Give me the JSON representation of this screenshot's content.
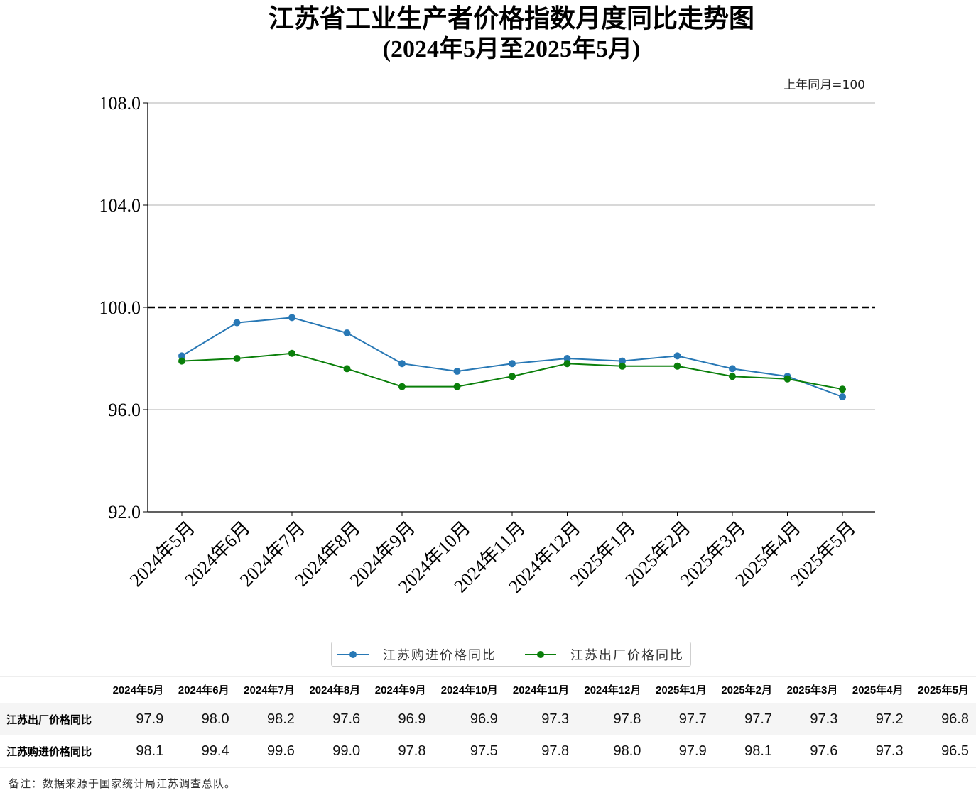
{
  "chart_data": {
    "type": "line",
    "title": "江苏省工业生产者价格指数月度同比走势图",
    "subtitle": "(2024年5月至2025年5月)",
    "note": "上年同月=100",
    "xlabel": "",
    "ylabel": "",
    "ylim": [
      92.0,
      108.0
    ],
    "yticks": [
      "92.0",
      "96.0",
      "100.0",
      "104.0",
      "108.0"
    ],
    "ytick_values": [
      92,
      96,
      100,
      104,
      108
    ],
    "grid": "horizontal",
    "reference_line": {
      "value": 100,
      "style": "dashed",
      "color": "#000000"
    },
    "legend_position": "bottom-center",
    "categories": [
      "2024年5月",
      "2024年6月",
      "2024年7月",
      "2024年8月",
      "2024年9月",
      "2024年10月",
      "2024年11月",
      "2024年12月",
      "2025年1月",
      "2025年2月",
      "2025年3月",
      "2025年4月",
      "2025年5月"
    ],
    "series": [
      {
        "name": "江苏购进价格同比",
        "color": "#2878b5",
        "values": [
          98.1,
          99.4,
          99.6,
          99.0,
          97.8,
          97.5,
          97.8,
          98.0,
          97.9,
          98.1,
          97.6,
          97.3,
          96.5
        ]
      },
      {
        "name": "江苏出厂价格同比",
        "color": "#0a7f0a",
        "values": [
          97.9,
          98.0,
          98.2,
          97.6,
          96.9,
          96.9,
          97.3,
          97.8,
          97.7,
          97.7,
          97.3,
          97.2,
          96.8
        ]
      }
    ]
  },
  "table": {
    "columns": [
      "2024年5月",
      "2024年6月",
      "2024年7月",
      "2024年8月",
      "2024年9月",
      "2024年10月",
      "2024年11月",
      "2024年12月",
      "2025年1月",
      "2025年2月",
      "2025年3月",
      "2025年4月",
      "2025年5月"
    ],
    "rows": [
      {
        "label": "江苏出厂价格同比",
        "values": [
          "97.9",
          "98.0",
          "98.2",
          "97.6",
          "96.9",
          "96.9",
          "97.3",
          "97.8",
          "97.7",
          "97.7",
          "97.3",
          "97.2",
          "96.8"
        ]
      },
      {
        "label": "江苏购进价格同比",
        "values": [
          "98.1",
          "99.4",
          "99.6",
          "99.0",
          "97.8",
          "97.5",
          "97.8",
          "98.0",
          "97.9",
          "98.1",
          "97.6",
          "97.3",
          "96.5"
        ]
      }
    ]
  },
  "footnote": "备注：数据来源于国家统计局江苏调查总队。"
}
